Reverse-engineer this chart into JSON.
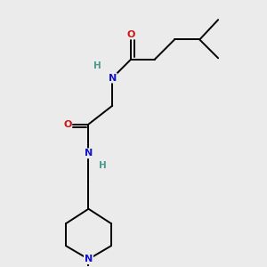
{
  "background_color": "#ebebeb",
  "atom_colors": {
    "N": "#1414cc",
    "O": "#cc1414",
    "H": "#4a9a8a"
  },
  "bond_color": "#000000",
  "bond_width": 1.4,
  "figsize": [
    3.0,
    3.0
  ],
  "dpi": 100,
  "xlim": [
    0,
    10
  ],
  "ylim": [
    0,
    10
  ]
}
